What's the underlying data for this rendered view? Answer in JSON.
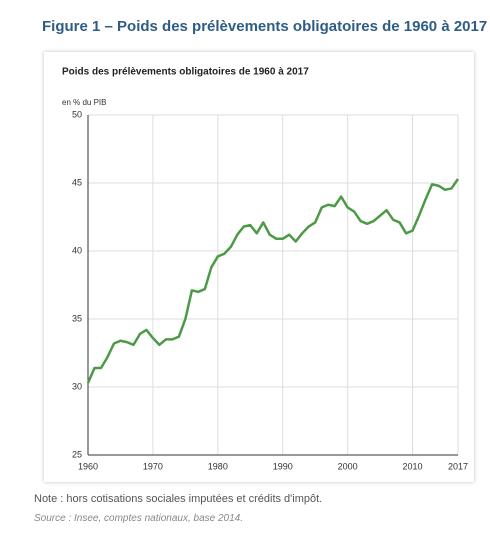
{
  "figure_heading": "Figure 1 – Poids des prélèvements obligatoires de 1960 à 2017",
  "note": "Note : hors cotisations sociales imputées et crédits d'impôt.",
  "source": "Source : Insee, comptes nationaux, base 2014.",
  "chart_data": {
    "type": "line",
    "title": "Poids des prélèvements obligatoires de 1960 à 2017",
    "y_label": "en % du PIB",
    "x": [
      1960,
      1961,
      1962,
      1963,
      1964,
      1965,
      1966,
      1967,
      1968,
      1969,
      1970,
      1971,
      1972,
      1973,
      1974,
      1975,
      1976,
      1977,
      1978,
      1979,
      1980,
      1981,
      1982,
      1983,
      1984,
      1985,
      1986,
      1987,
      1988,
      1989,
      1990,
      1991,
      1992,
      1993,
      1994,
      1995,
      1996,
      1997,
      1998,
      1999,
      2000,
      2001,
      2002,
      2003,
      2004,
      2005,
      2006,
      2007,
      2008,
      2009,
      2010,
      2011,
      2012,
      2013,
      2014,
      2015,
      2016,
      2017
    ],
    "values": [
      30.3,
      31.4,
      31.4,
      32.2,
      33.2,
      33.4,
      33.3,
      33.1,
      33.9,
      34.2,
      33.6,
      33.1,
      33.5,
      33.5,
      33.7,
      35.0,
      37.1,
      37.0,
      37.2,
      38.8,
      39.6,
      39.8,
      40.3,
      41.2,
      41.8,
      41.9,
      41.3,
      42.1,
      41.2,
      40.9,
      40.9,
      41.2,
      40.7,
      41.3,
      41.8,
      42.1,
      43.2,
      43.4,
      43.3,
      44.0,
      43.2,
      42.9,
      42.2,
      42.0,
      42.2,
      42.6,
      43.0,
      42.3,
      42.1,
      41.3,
      41.5,
      42.6,
      43.8,
      44.9,
      44.8,
      44.5,
      44.6,
      45.3
    ],
    "color": "#4c9a45",
    "xlim": [
      1960,
      2017
    ],
    "xticks": [
      1960,
      1970,
      1980,
      1990,
      2000,
      2010,
      2017
    ],
    "ylim": [
      25,
      50
    ],
    "yticks": [
      25,
      30,
      35,
      40,
      45,
      50
    ],
    "grid": true
  }
}
